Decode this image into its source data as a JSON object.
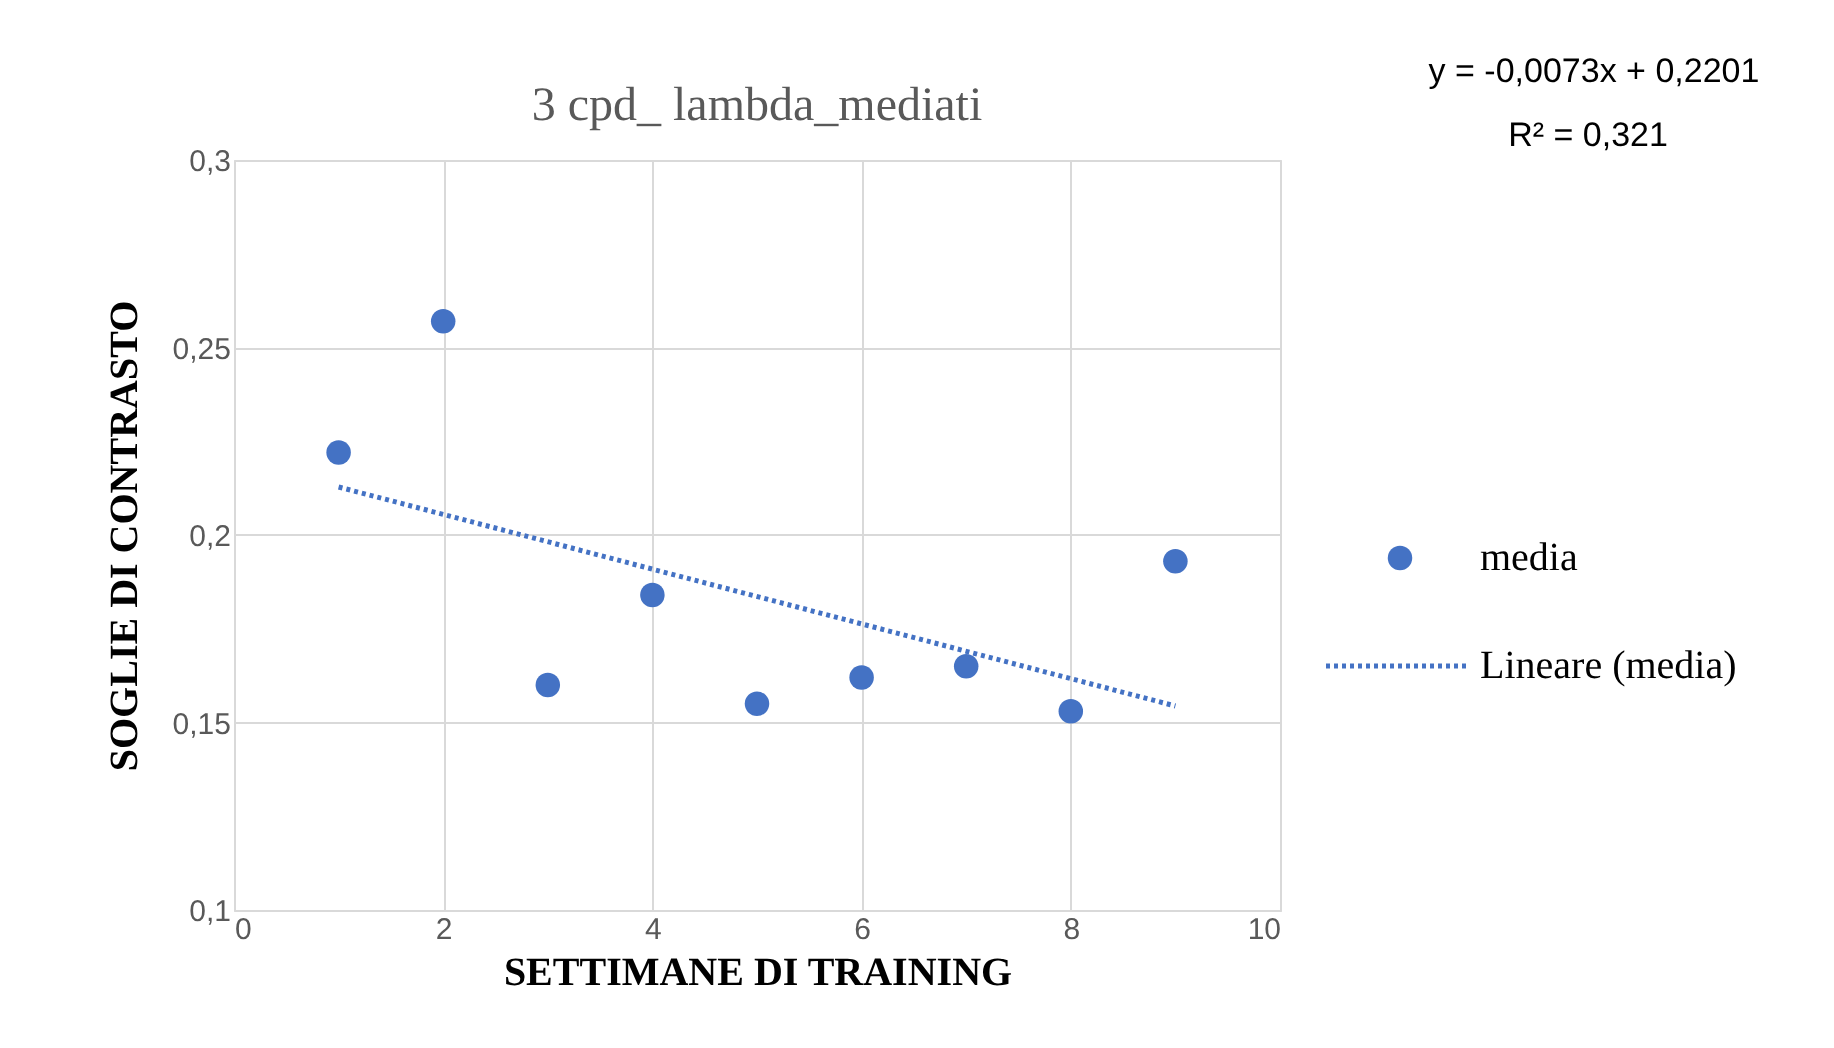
{
  "chart_data": {
    "type": "scatter",
    "title": "3 cpd_ lambda_mediati",
    "xlabel": "SETTIMANE DI TRAINING",
    "ylabel": "SOGLIE DI CONTRASTO",
    "x": [
      1,
      2,
      3,
      4,
      5,
      6,
      7,
      8,
      9
    ],
    "series": [
      {
        "name": "media",
        "color": "#4472c4",
        "marker": "circle",
        "values": [
          0.222,
          0.257,
          0.16,
          0.184,
          0.155,
          0.162,
          0.165,
          0.153,
          0.193
        ]
      },
      {
        "name": "Lineare (media)",
        "type": "line",
        "color": "#4472c4",
        "line_style": "dotted",
        "marker": "none",
        "x": [
          1,
          9
        ],
        "values": [
          0.2128,
          0.1544
        ]
      }
    ],
    "xlim": [
      0,
      10
    ],
    "xticks": [
      0,
      2,
      4,
      6,
      8,
      10
    ],
    "ylim": [
      0.1,
      0.3
    ],
    "yticks": [
      {
        "value": 0.1,
        "label": "0,1"
      },
      {
        "value": 0.15,
        "label": "0,15"
      },
      {
        "value": 0.2,
        "label": "0,2"
      },
      {
        "value": 0.25,
        "label": "0,25"
      },
      {
        "value": 0.3,
        "label": "0,3"
      }
    ],
    "grid": true,
    "legend": "right",
    "annotations": [
      "y = -0,0073x + 0,2201",
      "R² = 0,321"
    ]
  }
}
